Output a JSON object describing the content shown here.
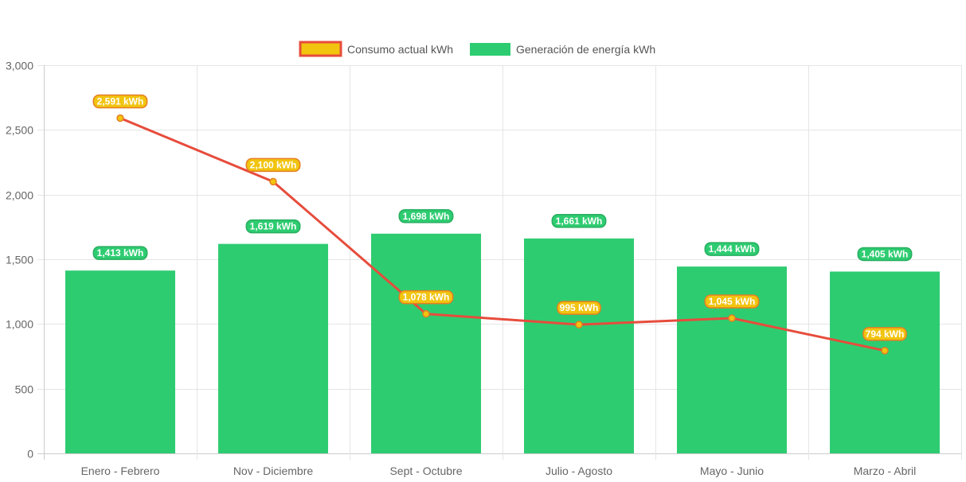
{
  "chart_data": {
    "type": "bar",
    "categories": [
      "Enero - Febrero",
      "Nov - Diciembre",
      "Sept - Octubre",
      "Julio - Agosto",
      "Mayo - Junio",
      "Marzo - Abril"
    ],
    "series": [
      {
        "name": "Consumo actual kWh",
        "type": "line",
        "values": [
          2591,
          2100,
          1078,
          995,
          1045,
          794
        ],
        "labels": [
          "2,591 kWh",
          "2,100 kWh",
          "1,078 kWh",
          "995 kWh",
          "1,045 kWh",
          "794 kWh"
        ],
        "line_color": "#e74c3c",
        "point_color": "#f1c40f",
        "label_bg": "#f1c40f",
        "label_border": "#e67e22"
      },
      {
        "name": "Generación de energía kWh",
        "type": "bar",
        "values": [
          1413,
          1619,
          1698,
          1661,
          1444,
          1405
        ],
        "labels": [
          "1,413 kWh",
          "1,619 kWh",
          "1,698 kWh",
          "1,661 kWh",
          "1,444 kWh",
          "1,405 kWh"
        ],
        "color": "#2ecc71",
        "label_bg": "#2ecc71",
        "label_border": "#27ae60"
      }
    ],
    "ylim": [
      0,
      3000
    ],
    "yticks": [
      "0",
      "500",
      "1,000",
      "1,500",
      "2,000",
      "2,500",
      "3,000"
    ],
    "grid": true,
    "legend_position": "top-center"
  }
}
